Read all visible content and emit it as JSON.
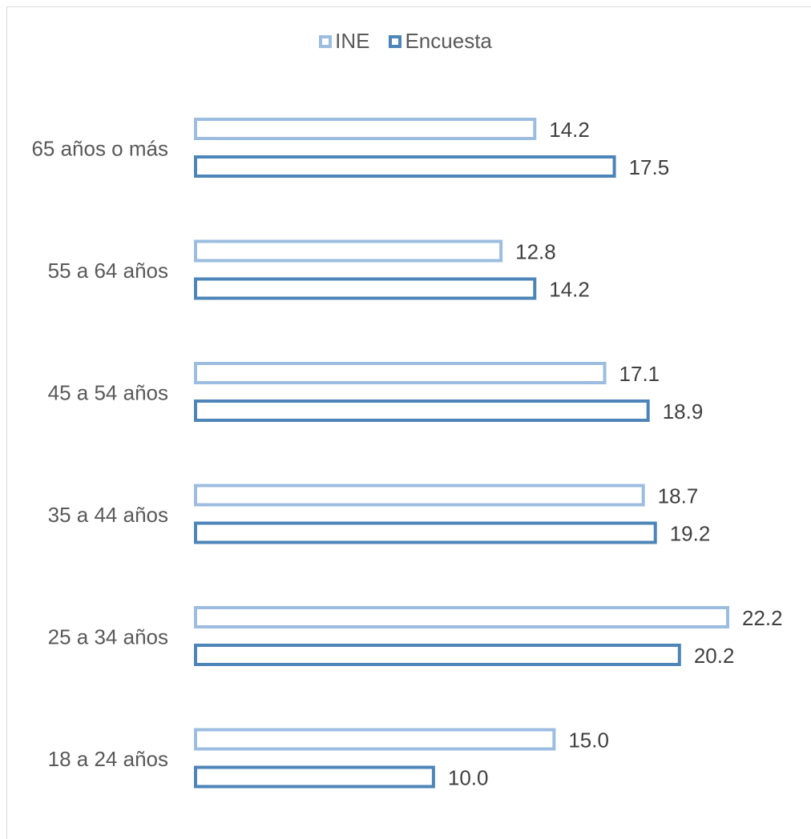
{
  "chart_data": {
    "type": "bar",
    "orientation": "horizontal",
    "categories": [
      "65 años o más",
      "55 a 64 años",
      "45 a 54 años",
      "35 a 44 años",
      "25 a 34 años",
      "18 a 24 años"
    ],
    "series": [
      {
        "name": "INE",
        "values": [
          14.2,
          12.8,
          17.1,
          18.7,
          22.2,
          15.0
        ],
        "labels": [
          "14.2",
          "12.8",
          "17.1",
          "18.7",
          "22.2",
          "15.0"
        ],
        "color": "#9dbde0"
      },
      {
        "name": "Encuesta",
        "values": [
          17.5,
          14.2,
          18.9,
          19.2,
          20.2,
          10.0
        ],
        "labels": [
          "17.5",
          "14.2",
          "18.9",
          "19.2",
          "20.2",
          "10.0"
        ],
        "color": "#4e85b8"
      }
    ],
    "bar_style": "outline",
    "xlim": [
      0,
      22.2
    ],
    "grid": false,
    "legend": "top-center",
    "title": "",
    "xlabel": "",
    "ylabel": ""
  },
  "colors": {
    "tick_text": "#595959",
    "label_text": "#404040"
  }
}
